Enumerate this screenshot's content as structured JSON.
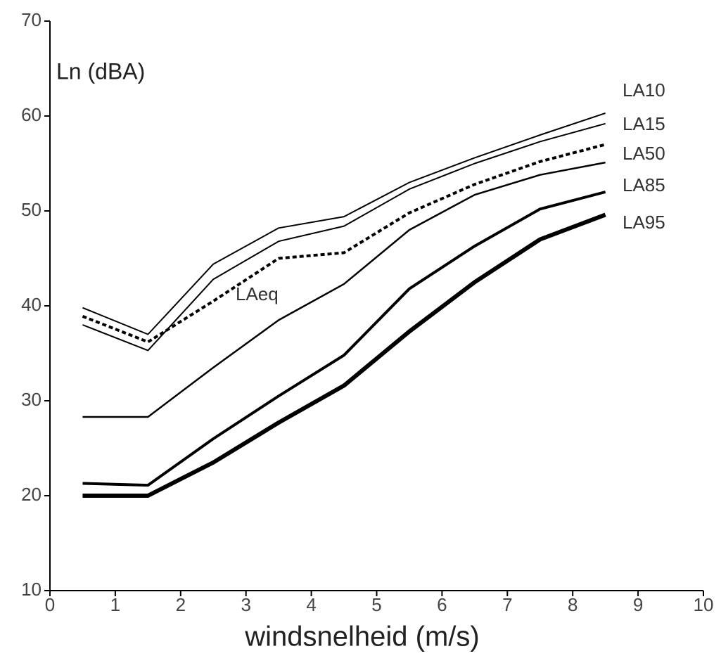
{
  "chart_data": {
    "type": "line",
    "y_axis_label": "Ln (dBA)",
    "x_axis_label": "windsnelheid (m/s)",
    "x": [
      0.5,
      1.5,
      2.5,
      3.5,
      4.5,
      5.5,
      6.5,
      7.5,
      8.5
    ],
    "xlim": [
      0,
      10
    ],
    "xticks": [
      0,
      1,
      2,
      3,
      4,
      5,
      6,
      7,
      8,
      9,
      10
    ],
    "ylim": [
      10,
      70
    ],
    "yticks": [
      10,
      20,
      30,
      40,
      50,
      60,
      70
    ],
    "grid": false,
    "series": [
      {
        "name": "LA10",
        "color": "#000000",
        "width": 2,
        "dashed": false,
        "values": [
          39.8,
          37.0,
          44.4,
          48.2,
          49.4,
          53.0,
          55.6,
          58.0,
          60.3
        ]
      },
      {
        "name": "LA15",
        "color": "#000000",
        "width": 2,
        "dashed": false,
        "values": [
          38.0,
          35.3,
          42.8,
          46.8,
          48.4,
          52.3,
          55.0,
          57.3,
          59.2
        ]
      },
      {
        "name": "LAeq",
        "color": "#000000",
        "width": 4,
        "dashed": true,
        "values": [
          38.9,
          36.2,
          40.5,
          45.0,
          45.6,
          49.8,
          52.8,
          55.2,
          57.0
        ]
      },
      {
        "name": "LA50",
        "color": "#000000",
        "width": 2.5,
        "dashed": false,
        "values": [
          28.3,
          28.3,
          33.5,
          38.5,
          42.3,
          48.0,
          51.7,
          53.8,
          55.1
        ]
      },
      {
        "name": "LA85",
        "color": "#000000",
        "width": 4,
        "dashed": false,
        "values": [
          21.3,
          21.1,
          26.0,
          30.5,
          34.8,
          41.8,
          46.3,
          50.2,
          52.0
        ]
      },
      {
        "name": "LA95",
        "color": "#000000",
        "width": 6,
        "dashed": false,
        "values": [
          20.0,
          20.0,
          23.5,
          27.7,
          31.6,
          37.3,
          42.5,
          47.0,
          49.6
        ]
      }
    ]
  }
}
